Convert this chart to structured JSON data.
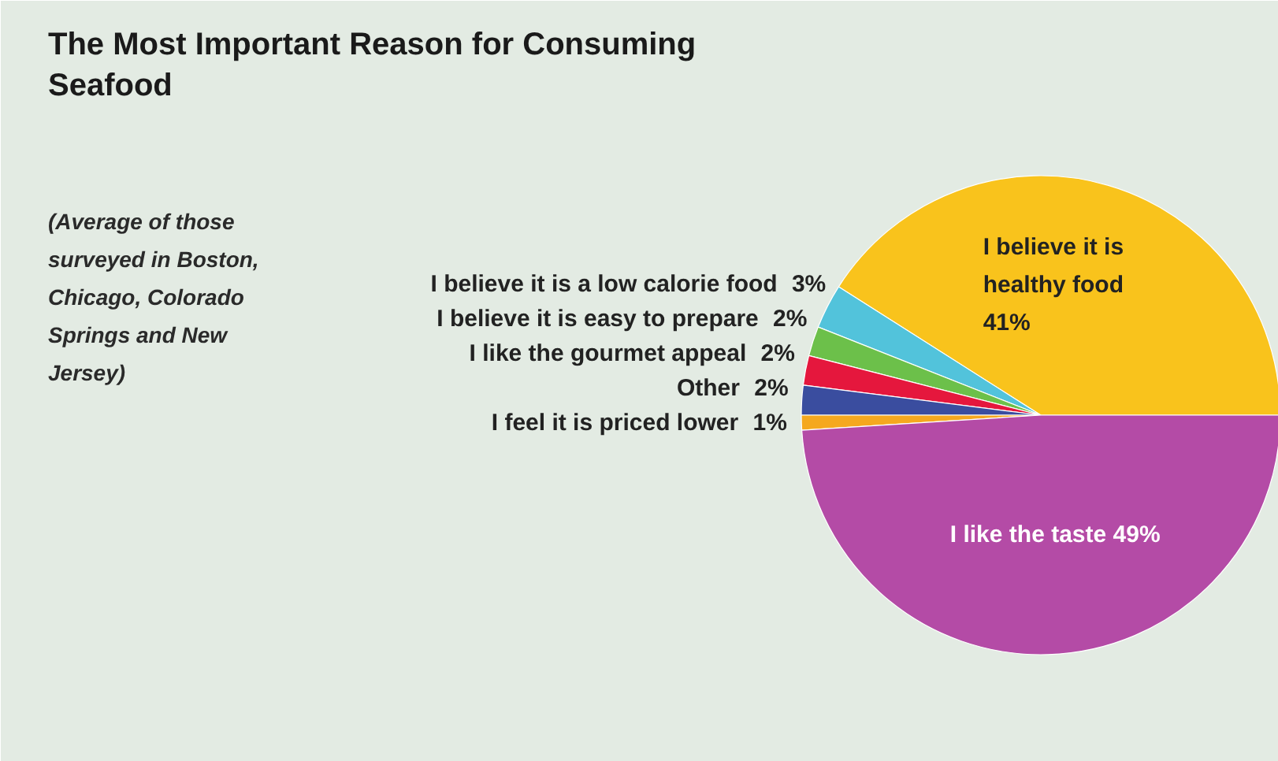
{
  "chart_data": {
    "type": "pie",
    "title": "The Most Important Reason for Consuming Seafood",
    "subtitle": "(Average of those surveyed in Boston, Chicago, Colorado Springs and New Jersey)",
    "categories": [
      "I believe it is healthy food",
      "I believe it is a low calorie food",
      "I believe it is easy to prepare",
      "I like the gourmet appeal",
      "Other",
      "I feel it is priced lower",
      "I like the taste"
    ],
    "values": [
      41,
      3,
      2,
      2,
      2,
      1,
      49
    ],
    "value_labels": [
      "41%",
      "3%",
      "2%",
      "2%",
      "2%",
      "1%",
      "49%"
    ],
    "colors": [
      "#f9c31c",
      "#52c3db",
      "#6cc04a",
      "#e5173d",
      "#3a4d9f",
      "#f5a81f",
      "#b44ba6"
    ]
  }
}
